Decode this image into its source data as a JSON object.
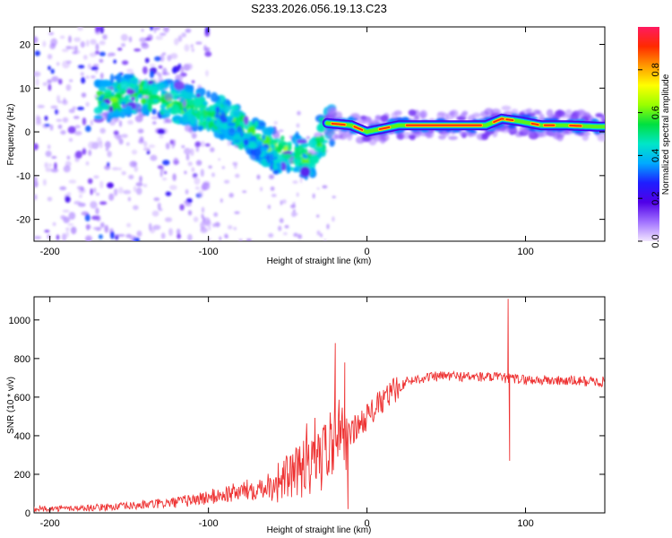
{
  "title": "S233.2026.056.19.13.C23",
  "chart_data": [
    {
      "type": "heatmap",
      "title": "S233.2026.056.19.13.C23",
      "xlabel": "Height of straight line (km)",
      "ylabel": "Frequency (Hz)",
      "xlim": [
        -210,
        150
      ],
      "ylim": [
        -25,
        24
      ],
      "xticks": [
        -200,
        -100,
        0,
        100
      ],
      "yticks": [
        -20,
        -10,
        0,
        10,
        20
      ],
      "colorbar": {
        "label": "Normalized spectral amplitude",
        "range": [
          0,
          1
        ],
        "ticks": [
          0.0,
          0.2,
          0.4,
          0.6,
          0.8
        ],
        "colormap": "gist_rainbow",
        "stops": [
          "#f2e6ff",
          "#a070ff",
          "#5000e8",
          "#1e1eff",
          "#00aaff",
          "#00e6c8",
          "#00e040",
          "#9aff00",
          "#ffff00",
          "#ff9900",
          "#ff2a00",
          "#ff1a60"
        ]
      },
      "trend": {
        "x": [
          -170,
          -145,
          -125,
          -105,
          -85,
          -65,
          -45,
          -35,
          -25,
          0,
          30,
          60,
          90,
          120,
          150
        ],
        "y": [
          7,
          9,
          7,
          5,
          2,
          -3,
          -5,
          -6,
          2,
          1.5,
          1.5,
          1.5,
          2.5,
          1.5,
          1
        ]
      },
      "diagonal_branch": {
        "x": [
          -95,
          -80,
          -65,
          -55
        ],
        "y": [
          4,
          -1,
          -5,
          -8
        ]
      },
      "strong_band": {
        "x": [
          -25,
          -10,
          0,
          20,
          40,
          60,
          75,
          85,
          95,
          110,
          125,
          145
        ],
        "y": [
          2,
          1.5,
          0,
          1.5,
          1.5,
          1.5,
          1.5,
          3,
          2.5,
          1.5,
          1.5,
          1.2
        ],
        "amplitude": [
          0.7,
          0.6,
          0.5,
          0.75,
          0.85,
          0.85,
          0.8,
          0.95,
          0.9,
          0.8,
          0.85,
          0.6
        ]
      }
    },
    {
      "type": "line",
      "xlabel": "Height of straight line (km)",
      "ylabel": "SNR (10 * v/v)",
      "xlim": [
        -210,
        150
      ],
      "ylim": [
        0,
        1120
      ],
      "xticks": [
        -200,
        -100,
        0,
        100
      ],
      "yticks": [
        0,
        200,
        400,
        600,
        800,
        1000
      ],
      "color": "#ee3333",
      "trend": {
        "x": [
          -210,
          -180,
          -150,
          -120,
          -100,
          -80,
          -60,
          -40,
          -25,
          -15,
          0,
          15,
          25,
          35,
          50,
          70,
          85,
          100,
          120,
          150
        ],
        "y": [
          20,
          25,
          35,
          55,
          80,
          110,
          150,
          220,
          300,
          380,
          500,
          620,
          680,
          700,
          710,
          705,
          700,
          690,
          685,
          680
        ]
      },
      "spikes": [
        {
          "x": -20,
          "y": 880
        },
        {
          "x": -14,
          "y": 780
        },
        {
          "x": -12,
          "y": 20
        },
        {
          "x": 89,
          "y": 1110
        },
        {
          "x": 90,
          "y": 270
        }
      ]
    }
  ]
}
